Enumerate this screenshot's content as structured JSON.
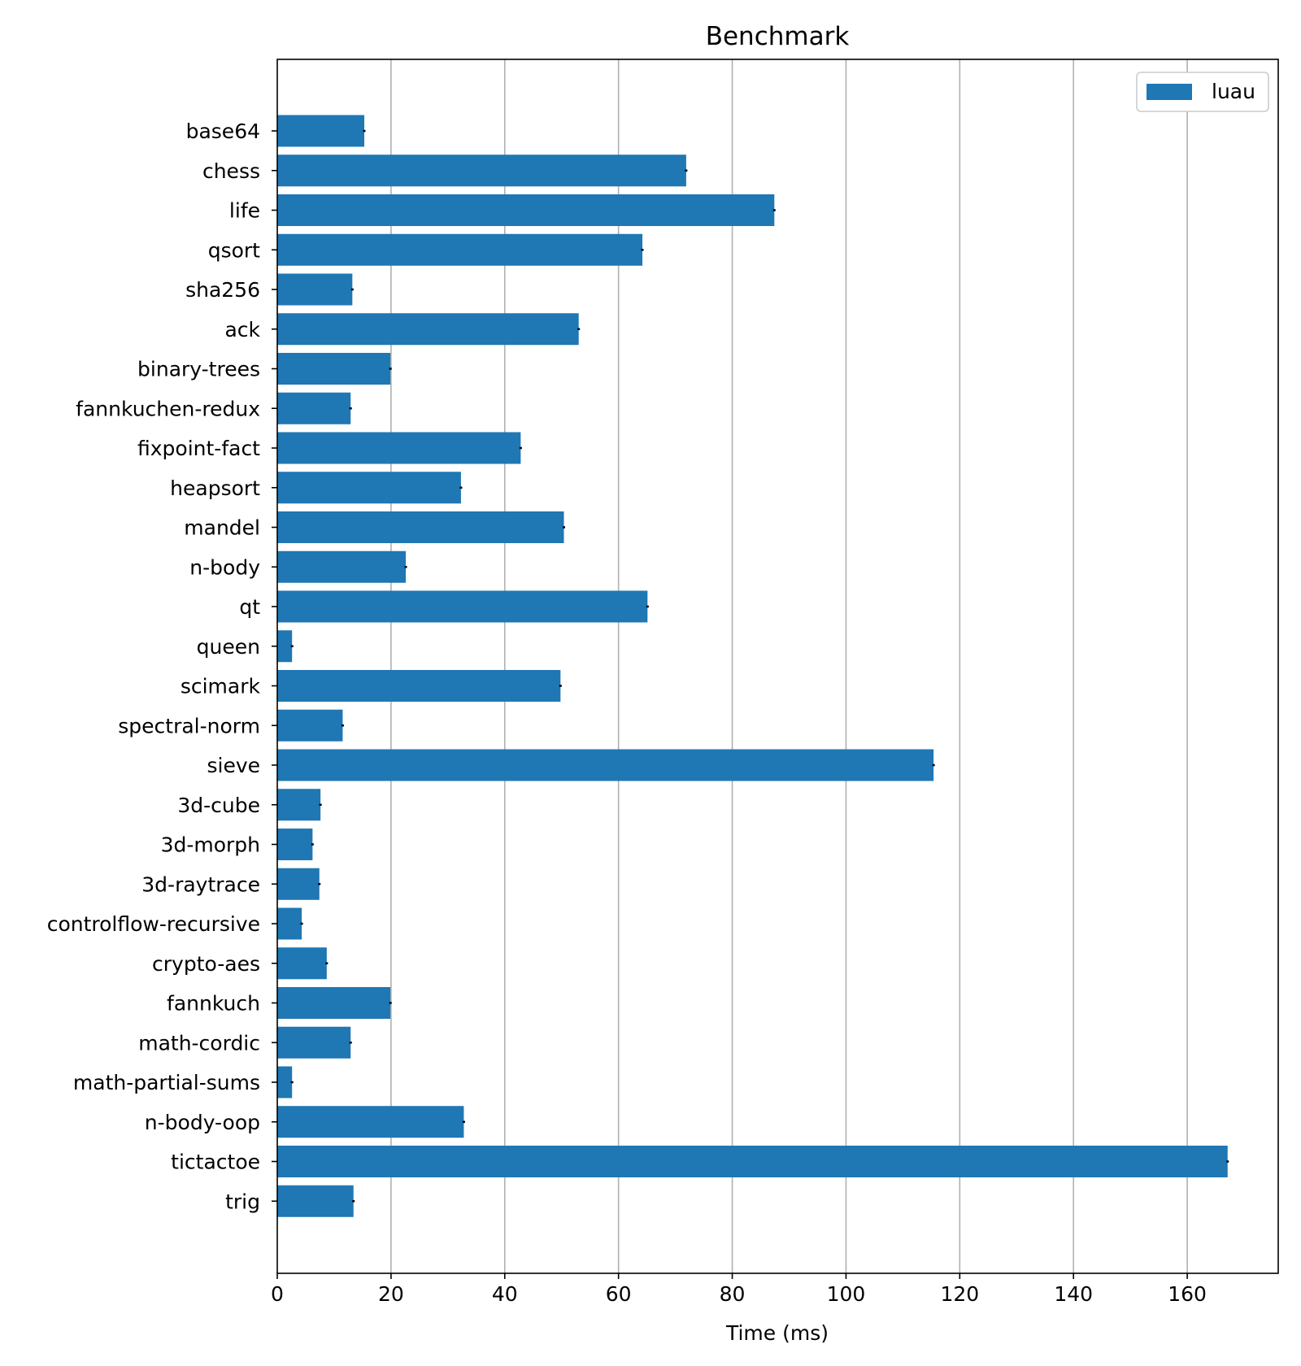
{
  "colors": {
    "bar": "#1f77b4",
    "grid": "#b0b0b0",
    "axis": "#000000",
    "error_bar": "#000000",
    "background": "#ffffff"
  },
  "chart_data": {
    "type": "bar",
    "orientation": "horizontal",
    "title": "Benchmark",
    "xlabel": "Time (ms)",
    "ylabel": "",
    "xlim": [
      0,
      176
    ],
    "xticks": [
      0,
      20,
      40,
      60,
      80,
      100,
      120,
      140,
      160
    ],
    "grid": "vertical",
    "legend": {
      "position": "top-right",
      "entries": [
        "luau"
      ]
    },
    "categories": [
      "base64",
      "chess",
      "life",
      "qsort",
      "sha256",
      "ack",
      "binary-trees",
      "fannkuchen-redux",
      "fixpoint-fact",
      "heapsort",
      "mandel",
      "n-body",
      "qt",
      "queen",
      "scimark",
      "spectral-norm",
      "sieve",
      "3d-cube",
      "3d-morph",
      "3d-raytrace",
      "controlflow-recursive",
      "crypto-aes",
      "fannkuch",
      "math-cordic",
      "math-partial-sums",
      "n-body-oop",
      "tictactoe",
      "trig"
    ],
    "series": [
      {
        "name": "luau",
        "values": [
          15.3,
          71.9,
          87.4,
          64.2,
          13.2,
          53.0,
          19.9,
          12.9,
          42.8,
          32.3,
          50.4,
          22.6,
          65.1,
          2.6,
          49.8,
          11.5,
          115.4,
          7.6,
          6.2,
          7.4,
          4.3,
          8.7,
          19.9,
          12.9,
          2.6,
          32.8,
          167.1,
          13.4
        ]
      }
    ]
  }
}
